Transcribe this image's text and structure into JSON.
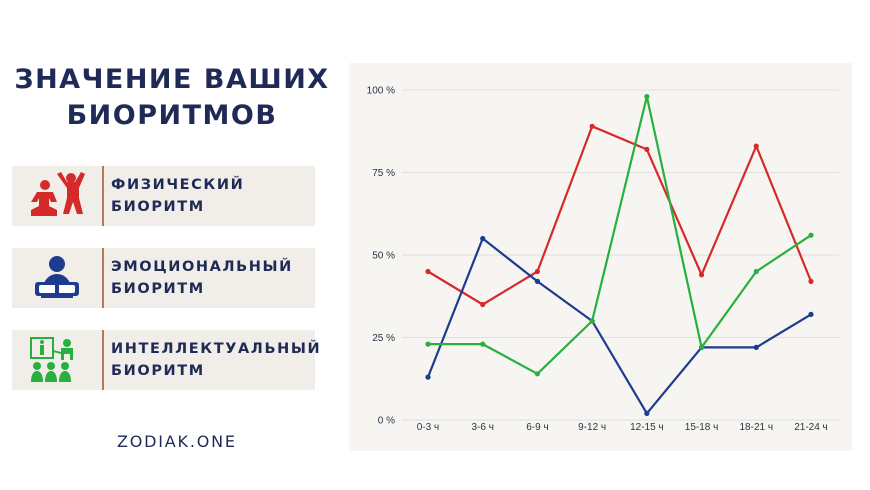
{
  "title": {
    "line1": "ЗНАЧЕНИЕ ВАШИХ",
    "line2": "БИОРИТМОВ"
  },
  "legend": [
    {
      "line1": "ФИЗИЧЕСКИЙ",
      "line2": "БИОРИТМ",
      "icon": "physical-biorhythm-icon",
      "color": "#d62a2a"
    },
    {
      "line1": "ЭМОЦИОНАЛЬНЫЙ",
      "line2": "БИОРИТМ",
      "icon": "emotional-biorhythm-icon",
      "color": "#1d3b8f"
    },
    {
      "line1": "ИНТЕЛЛЕКТУАЛЬНЫЙ",
      "line2": "БИОРИТМ",
      "icon": "intellectual-biorhythm-icon",
      "color": "#27b03e"
    }
  ],
  "brand": "ZODIAK.ONE",
  "chart_data": {
    "type": "line",
    "categories": [
      "0-3 ч",
      "3-6 ч",
      "6-9 ч",
      "9-12 ч",
      "12-15 ч",
      "15-18 ч",
      "18-21 ч",
      "21-24 ч"
    ],
    "y_ticks": [
      "0 %",
      "25 %",
      "50 %",
      "75 %",
      "100 %"
    ],
    "ylim": [
      0,
      100
    ],
    "grid": true,
    "series": [
      {
        "color": "#d62a2a",
        "values": [
          45,
          35,
          45,
          89,
          82,
          44,
          83,
          42
        ]
      },
      {
        "color": "#1d3b8f",
        "values": [
          13,
          55,
          42,
          30,
          2,
          22,
          22,
          32
        ]
      },
      {
        "color": "#27b03e",
        "values": [
          23,
          23,
          14,
          30,
          98,
          22,
          45,
          56
        ]
      }
    ]
  }
}
